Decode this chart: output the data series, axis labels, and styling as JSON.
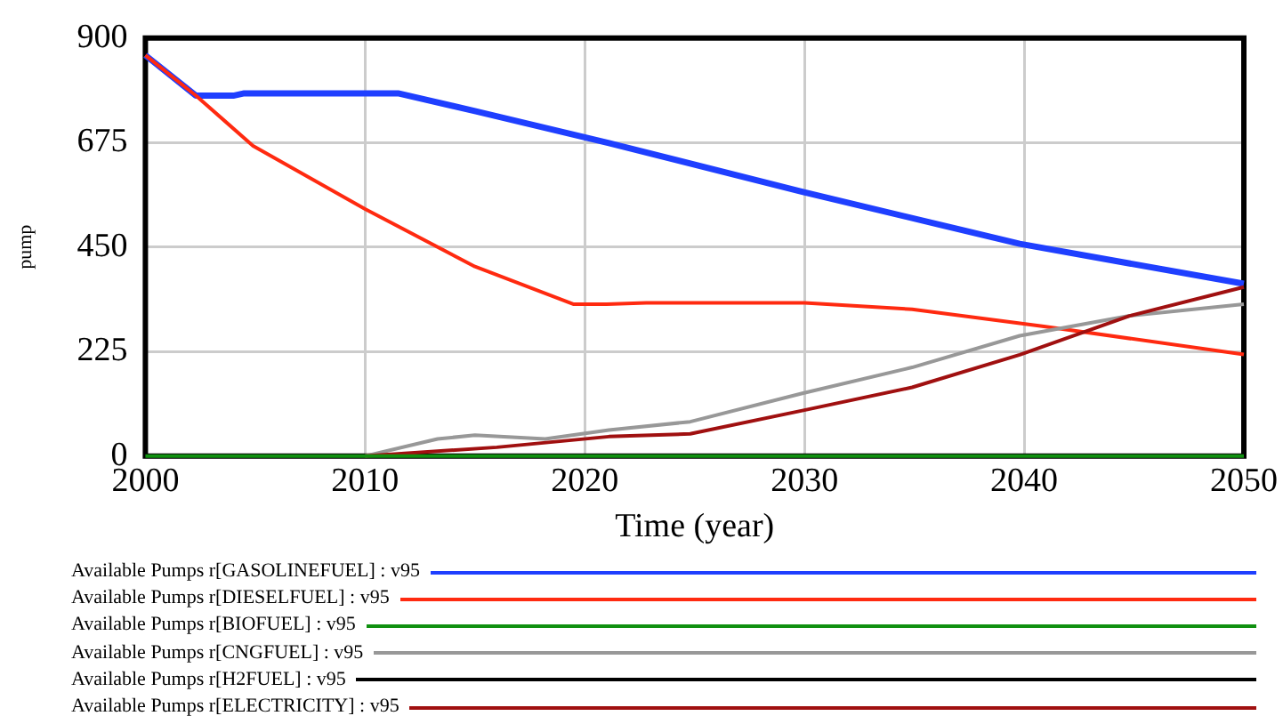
{
  "chart_data": {
    "type": "line",
    "xlabel": "Time (year)",
    "ylabel": "pump",
    "xlim": [
      2000,
      2050
    ],
    "xticks": [
      2000,
      2010,
      2020,
      2030,
      2040,
      2050
    ],
    "ylim": [
      0,
      900
    ],
    "yticks": [
      0,
      225,
      450,
      675,
      900
    ],
    "grid": true,
    "legend": "bottom",
    "marker": "none",
    "line_style": "solid",
    "series": [
      {
        "name": "Available Pumps r[GASOLINEFUEL] : v95",
        "color": "#1f3fff",
        "x": [
          2000,
          2002.3,
          2004,
          2004.5,
          2010,
          2011.5,
          2015,
          2021.1,
          2029.9,
          2039.8,
          2050
        ],
        "values": [
          863,
          776,
          776,
          781,
          781,
          781,
          743,
          674,
          569,
          457,
          371
        ]
      },
      {
        "name": "Available Pumps r[DIESELFUEL] : v95",
        "color": "#ff2a10",
        "x": [
          2000,
          2002.3,
          2004.9,
          2010,
          2015,
          2019.5,
          2021,
          2022.8,
          2030,
          2034.9,
          2040.9,
          2050
        ],
        "values": [
          863,
          776,
          668,
          532,
          408,
          327,
          327,
          330,
          330,
          316,
          279,
          219
        ]
      },
      {
        "name": "Available Pumps r[BIOFUEL] : v95",
        "color": "#109010",
        "x": [
          2000,
          2050
        ],
        "values": [
          0,
          0
        ]
      },
      {
        "name": "Available Pumps r[CNGFUEL] : v95",
        "color": "#989898",
        "x": [
          2010,
          2013.3,
          2015,
          2018.2,
          2021.1,
          2024.8,
          2029.9,
          2034.9,
          2039.8,
          2044.8,
          2050
        ],
        "values": [
          0,
          37,
          45,
          37,
          56,
          74,
          135,
          191,
          259,
          302,
          327
        ]
      },
      {
        "name": "Available Pumps r[H2FUEL] : v95",
        "color": "#000000"
      },
      {
        "name": "Available Pumps r[ELECTRICITY] : v95",
        "color": "#a01010",
        "x": [
          2010,
          2012.1,
          2016,
          2021.1,
          2024.8,
          2029.9,
          2034.9,
          2039.8,
          2044.8,
          2050
        ],
        "values": [
          0,
          7,
          19,
          42,
          48,
          98,
          148,
          218,
          302,
          364
        ]
      }
    ]
  }
}
